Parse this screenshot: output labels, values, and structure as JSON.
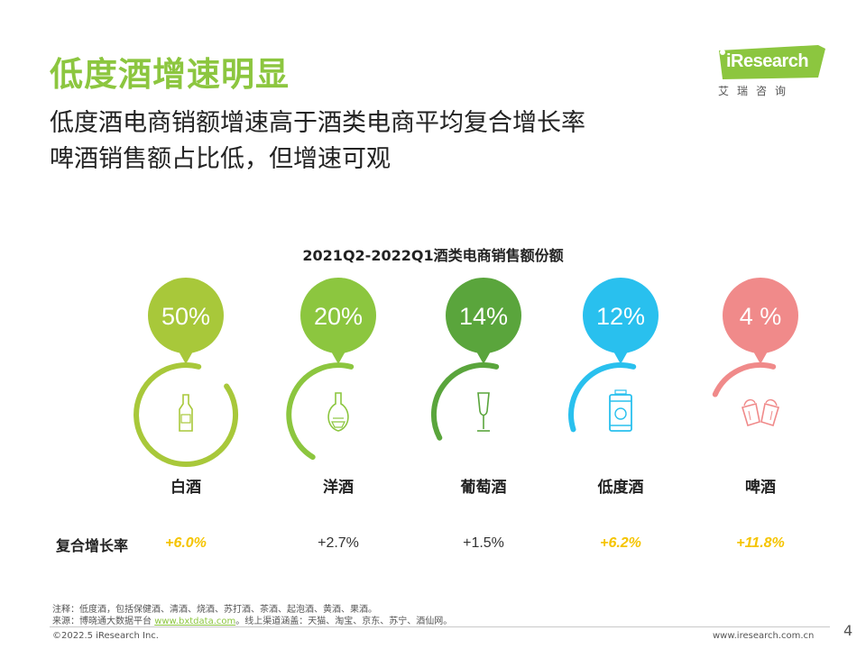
{
  "header": {
    "title": "低度酒增速明显",
    "subtitle_line1": "低度酒电商销额增速高于酒类电商平均复合增长率",
    "subtitle_line2": "啤酒销售额占比低，但增速可观"
  },
  "logo": {
    "name": "iResearch",
    "cn": "艾瑞咨询",
    "color": "#8cc63f"
  },
  "chart_data": {
    "type": "bubble-infographic",
    "title": "2021Q2-2022Q1酒类电商销售额份额",
    "unit": "%",
    "categories": [
      "白酒",
      "洋酒",
      "葡萄酒",
      "低度酒",
      "啤酒"
    ],
    "share_labels": [
      "50%",
      "20%",
      "14%",
      "12%",
      "4 %"
    ],
    "share_values": [
      50,
      20,
      14,
      12,
      4
    ],
    "growth_label": "复合增长率",
    "growth_labels": [
      "+6.0%",
      "+2.7%",
      "+1.5%",
      "+6.2%",
      "+11.8%"
    ],
    "growth_values": [
      6.0,
      2.7,
      1.5,
      6.2,
      11.8
    ],
    "growth_highlight": [
      true,
      false,
      false,
      true,
      true
    ],
    "colors": [
      "#a8c83a",
      "#8cc63f",
      "#5aa53c",
      "#29c0ee",
      "#f08a8a"
    ],
    "highlight_color": "#f5c400",
    "icons": [
      "baijiu-bottle-icon",
      "brandy-bottle-icon",
      "wine-glass-icon",
      "can-icon",
      "beer-cheers-icon"
    ]
  },
  "notes": {
    "note": "注释：低度酒，包括保健酒、清酒、烧酒、苏打酒、茶酒、起泡酒、黄酒、果酒。",
    "source_prefix": "来源：博晓通大数据平台 ",
    "source_link": "www.bxtdata.com",
    "source_suffix": "。线上渠道涵盖：天猫、淘宝、京东、苏宁、酒仙网。"
  },
  "footer": {
    "copyright": "©2022.5 iResearch Inc.",
    "website": "www.iresearch.com.cn",
    "page": "4"
  }
}
